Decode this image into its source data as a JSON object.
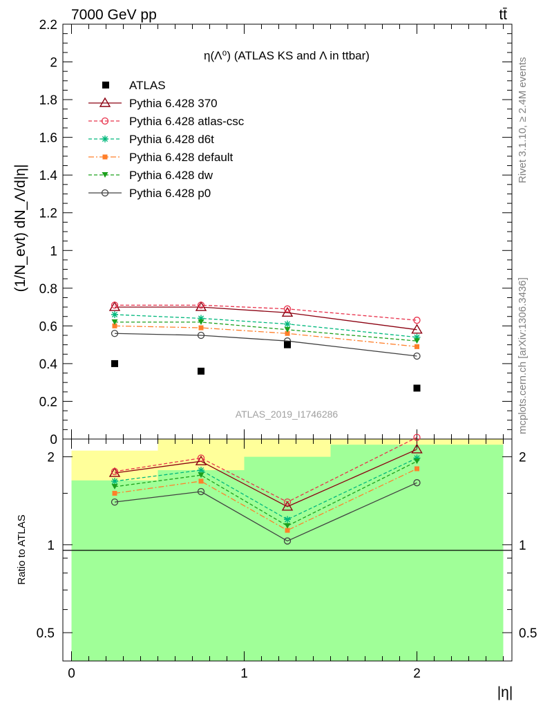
{
  "header": {
    "left": "7000 GeV pp",
    "right": "tt̄"
  },
  "side": {
    "rivet": "Rivet 3.1.10, ≥ 2.4M events",
    "mcplots": "mcplots.cern.ch [arXiv:1306.3436]"
  },
  "watermark": "ATLAS_2019_I1746286",
  "chart_data": [
    {
      "type": "scatter",
      "title": "η(Λ⁰) (ATLAS KS and Λ in ttbar)",
      "ylabel": "(1/N_evt) dN_Λ/d|η|",
      "xlabel": "|η|",
      "xlim": [
        -0.05,
        2.55
      ],
      "ylim": [
        0,
        2.2
      ],
      "yticks": [
        "0",
        "0.2",
        "0.4",
        "0.6",
        "0.8",
        "1",
        "1.2",
        "1.4",
        "1.6",
        "1.8",
        "2",
        "2.2"
      ],
      "x": [
        0.25,
        0.75,
        1.25,
        2.0
      ],
      "data": {
        "name": "ATLAS",
        "color": "#000000",
        "values": [
          0.4,
          0.36,
          0.5,
          0.27
        ]
      },
      "series": [
        {
          "name": "Pythia 6.428 370",
          "color": "#8b0010",
          "dash": "",
          "marker": "triangle-open",
          "values": [
            0.7,
            0.7,
            0.67,
            0.58
          ]
        },
        {
          "name": "Pythia 6.428 atlas-csc",
          "color": "#e8304a",
          "dash": "5,3",
          "marker": "circle-open",
          "values": [
            0.71,
            0.71,
            0.69,
            0.63
          ]
        },
        {
          "name": "Pythia 6.428 d6t",
          "color": "#00b87c",
          "dash": "5,3",
          "marker": "star",
          "values": [
            0.66,
            0.64,
            0.61,
            0.54
          ]
        },
        {
          "name": "Pythia 6.428 default",
          "color": "#ff7f2a",
          "dash": "8,3,2,3",
          "marker": "square",
          "values": [
            0.6,
            0.59,
            0.56,
            0.49
          ]
        },
        {
          "name": "Pythia 6.428 dw",
          "color": "#1ca01c",
          "dash": "5,3",
          "marker": "triangle-down",
          "values": [
            0.62,
            0.62,
            0.58,
            0.52
          ]
        },
        {
          "name": "Pythia 6.428 p0",
          "color": "#404040",
          "dash": "",
          "marker": "circle-open",
          "values": [
            0.56,
            0.55,
            0.52,
            0.44
          ]
        }
      ],
      "grid": false,
      "legend": "top-left"
    },
    {
      "type": "line",
      "ylabel": "Ratio to ATLAS",
      "xlabel": "|η|",
      "xticks": [
        "0",
        "1",
        "2"
      ],
      "yticks": [
        "0.5",
        "1",
        "2"
      ],
      "ylim": [
        0.4,
        2.3
      ],
      "log_scale_y": true,
      "x": [
        0.25,
        0.75,
        1.25,
        2.0
      ],
      "bins": [
        [
          0,
          0.5
        ],
        [
          0.5,
          1.0
        ],
        [
          1.0,
          1.5
        ],
        [
          1.5,
          2.5
        ]
      ],
      "band_inner": [
        [
          0.39,
          1.66
        ],
        [
          0.37,
          1.8
        ],
        [
          0.37,
          2.0
        ],
        [
          0.37,
          2.2
        ]
      ],
      "band_outer": [
        [
          0.36,
          2.1
        ],
        [
          0.36,
          2.4
        ],
        [
          0.36,
          2.4
        ],
        [
          0.36,
          2.4
        ]
      ],
      "band_inner_color": "#a0ff98",
      "band_outer_color": "#ffff9a",
      "series": [
        {
          "name": "Pythia 6.428 370",
          "values": [
            1.76,
            1.93,
            1.35,
            2.12
          ]
        },
        {
          "name": "Pythia 6.428 atlas-csc",
          "values": [
            1.78,
            1.98,
            1.4,
            2.33
          ]
        },
        {
          "name": "Pythia 6.428 d6t",
          "values": [
            1.65,
            1.8,
            1.22,
            1.98
          ]
        },
        {
          "name": "Pythia 6.428 default",
          "values": [
            1.5,
            1.65,
            1.12,
            1.82
          ]
        },
        {
          "name": "Pythia 6.428 dw",
          "values": [
            1.58,
            1.73,
            1.16,
            1.93
          ]
        },
        {
          "name": "Pythia 6.428 p0",
          "values": [
            1.4,
            1.52,
            1.03,
            1.63
          ]
        }
      ]
    }
  ]
}
